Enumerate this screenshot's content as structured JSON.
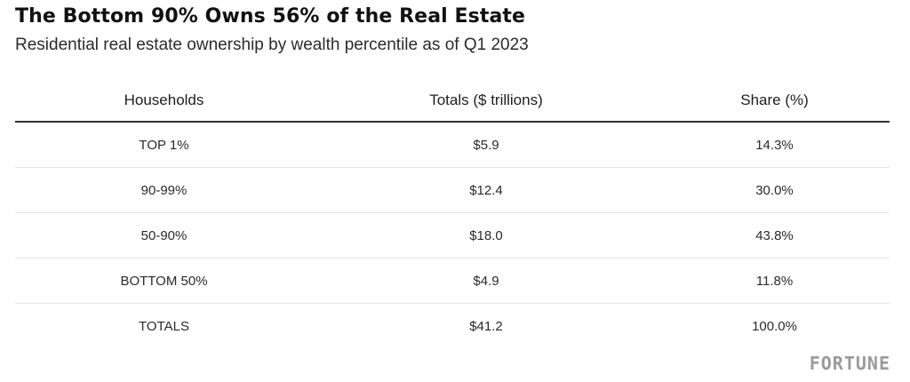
{
  "header": {
    "title": "The Bottom 90% Owns 56% of the Real Estate",
    "subtitle": "Residential real estate ownership by wealth percentile as of Q1 2023"
  },
  "chart_data": {
    "type": "table",
    "columns": [
      "Households",
      "Totals ($ trillions)",
      "Share (%)"
    ],
    "rows": [
      [
        "TOP 1%",
        "$5.9",
        "14.3%"
      ],
      [
        "90-99%",
        "$12.4",
        "30.0%"
      ],
      [
        "50-90%",
        "$18.0",
        "43.8%"
      ],
      [
        "BOTTOM 50%",
        "$4.9",
        "11.8%"
      ],
      [
        "TOTALS",
        "$41.2",
        "100.0%"
      ]
    ]
  },
  "footer": {
    "brand": "FORTUNE"
  }
}
